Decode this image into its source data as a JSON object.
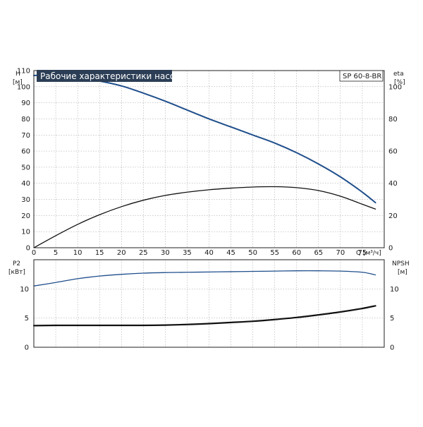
{
  "chart_data": [
    {
      "type": "line",
      "title": "Рабочие характеристики насоса",
      "model": "SP 60-8-BR",
      "xlabel": "Q [м³/ч]",
      "xlim": [
        0,
        80
      ],
      "x_ticks": [
        "0",
        "5",
        "10",
        "15",
        "20",
        "25",
        "30",
        "35",
        "40",
        "45",
        "50",
        "55",
        "60",
        "65",
        "70",
        "75"
      ],
      "y_left": {
        "label_line1": "H",
        "label_line2": "[м]",
        "lim": [
          0,
          110
        ],
        "ticks": [
          "0",
          "10",
          "20",
          "30",
          "40",
          "50",
          "60",
          "70",
          "80",
          "90",
          "100",
          "110"
        ]
      },
      "y_right": {
        "label_line1": "eta",
        "label_line2": "[%]",
        "lim": [
          0,
          110
        ],
        "ticks": [
          "0",
          "20",
          "40",
          "60",
          "80",
          "100"
        ]
      },
      "grid": true,
      "series": [
        {
          "axis": "left",
          "color": "#1f4e8c",
          "x": [
            0,
            5,
            10,
            15,
            20,
            25,
            30,
            35,
            40,
            45,
            50,
            55,
            60,
            65,
            70,
            75,
            78
          ],
          "y": [
            107,
            106.7,
            105.5,
            103.5,
            100.5,
            96,
            91,
            85.5,
            80,
            75,
            70,
            65,
            59,
            52,
            44,
            34.5,
            28
          ]
        },
        {
          "axis": "right",
          "color": "#111111",
          "x": [
            0,
            5,
            10,
            15,
            20,
            25,
            30,
            35,
            40,
            45,
            50,
            55,
            60,
            65,
            70,
            75,
            78
          ],
          "y": [
            0,
            7.5,
            14.5,
            20.5,
            25.5,
            29.5,
            32.5,
            34.5,
            36,
            37,
            37.7,
            37.9,
            37.3,
            35.5,
            32,
            27,
            24
          ]
        }
      ]
    },
    {
      "type": "line",
      "xlim": [
        0,
        80
      ],
      "y_left": {
        "label_line1": "P2",
        "label_line2": "[кВт]",
        "lim": [
          0,
          15
        ],
        "ticks": [
          "0",
          "5",
          "10"
        ]
      },
      "y_right": {
        "label_line1": "NPSH",
        "label_line2": "[м]",
        "lim": [
          0,
          15
        ],
        "ticks": [
          "0",
          "5",
          "10"
        ]
      },
      "grid": true,
      "series": [
        {
          "axis": "left",
          "color": "#1f4e8c",
          "x": [
            0,
            5,
            10,
            15,
            20,
            25,
            30,
            35,
            40,
            45,
            50,
            55,
            60,
            65,
            70,
            75,
            78
          ],
          "y": [
            10.5,
            11.1,
            11.75,
            12.2,
            12.5,
            12.7,
            12.8,
            12.85,
            12.9,
            12.95,
            13.0,
            13.05,
            13.1,
            13.1,
            13.05,
            12.85,
            12.4
          ]
        },
        {
          "axis": "left",
          "color": "#111111",
          "x": [
            0,
            5,
            10,
            15,
            20,
            25,
            30,
            35,
            40,
            45,
            50,
            55,
            60,
            65,
            70,
            75,
            78
          ],
          "y": [
            3.7,
            3.75,
            3.75,
            3.75,
            3.75,
            3.75,
            3.8,
            3.9,
            4.05,
            4.25,
            4.45,
            4.75,
            5.1,
            5.55,
            6.05,
            6.65,
            7.1
          ]
        }
      ]
    }
  ]
}
